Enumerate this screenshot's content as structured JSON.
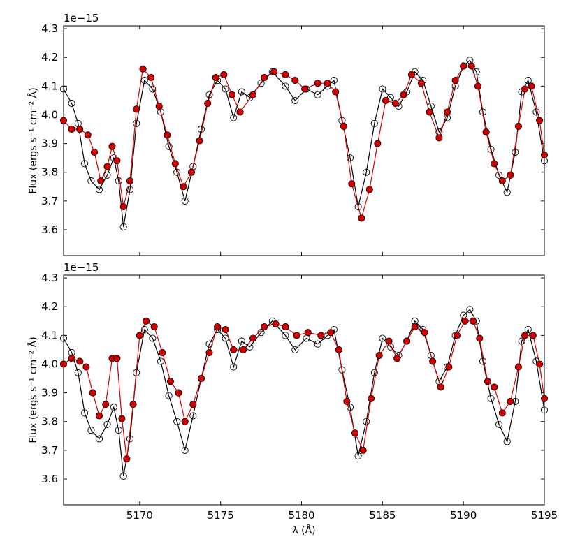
{
  "chart_data": [
    {
      "type": "line",
      "panel": "top",
      "ylabel": "Flux (ergs s⁻¹ cm⁻² Å)",
      "offset_text": "1e−15",
      "xlim": [
        5165.3,
        5195
      ],
      "ylim": [
        3.51,
        4.31
      ],
      "xticks": [
        5170,
        5175,
        5180,
        5185,
        5190,
        5195
      ],
      "yticks": [
        3.6,
        3.7,
        3.8,
        3.9,
        4.0,
        4.1,
        4.2,
        4.3
      ],
      "ytick_labels": [
        "3.6",
        "3.7",
        "3.8",
        "3.9",
        "4.0",
        "4.1",
        "4.2",
        "4.3"
      ],
      "series": [
        {
          "color": "#000000",
          "marker": "open-circle",
          "points": [
            [
              5165.3,
              4.09
            ],
            [
              5165.8,
              4.04
            ],
            [
              5166.2,
              3.97
            ],
            [
              5166.6,
              3.83
            ],
            [
              5167.0,
              3.77
            ],
            [
              5167.5,
              3.74
            ],
            [
              5168.0,
              3.79
            ],
            [
              5168.4,
              3.85
            ],
            [
              5168.7,
              3.77
            ],
            [
              5169.0,
              3.61
            ],
            [
              5169.4,
              3.74
            ],
            [
              5169.8,
              3.97
            ],
            [
              5170.3,
              4.12
            ],
            [
              5170.8,
              4.09
            ],
            [
              5171.3,
              4.01
            ],
            [
              5171.8,
              3.89
            ],
            [
              5172.3,
              3.8
            ],
            [
              5172.8,
              3.7
            ],
            [
              5173.3,
              3.82
            ],
            [
              5173.8,
              3.95
            ],
            [
              5174.3,
              4.07
            ],
            [
              5174.8,
              4.12
            ],
            [
              5175.3,
              4.09
            ],
            [
              5175.8,
              3.99
            ],
            [
              5176.3,
              4.08
            ],
            [
              5176.8,
              4.06
            ],
            [
              5177.5,
              4.11
            ],
            [
              5178.2,
              4.15
            ],
            [
              5179.0,
              4.1
            ],
            [
              5179.6,
              4.05
            ],
            [
              5180.3,
              4.09
            ],
            [
              5181.0,
              4.07
            ],
            [
              5181.6,
              4.1
            ],
            [
              5182.0,
              4.12
            ],
            [
              5182.5,
              3.98
            ],
            [
              5183.0,
              3.85
            ],
            [
              5183.5,
              3.68
            ],
            [
              5184.0,
              3.8
            ],
            [
              5184.5,
              3.97
            ],
            [
              5185.0,
              4.09
            ],
            [
              5185.5,
              4.06
            ],
            [
              5186.0,
              4.03
            ],
            [
              5186.5,
              4.08
            ],
            [
              5187.0,
              4.15
            ],
            [
              5187.5,
              4.12
            ],
            [
              5188.0,
              4.03
            ],
            [
              5188.5,
              3.94
            ],
            [
              5189.0,
              3.99
            ],
            [
              5189.5,
              4.1
            ],
            [
              5190.0,
              4.17
            ],
            [
              5190.4,
              4.19
            ],
            [
              5190.8,
              4.15
            ],
            [
              5191.2,
              4.01
            ],
            [
              5191.7,
              3.88
            ],
            [
              5192.2,
              3.79
            ],
            [
              5192.7,
              3.73
            ],
            [
              5193.2,
              3.87
            ],
            [
              5193.6,
              4.08
            ],
            [
              5194.0,
              4.12
            ],
            [
              5194.5,
              4.01
            ],
            [
              5195.0,
              3.84
            ]
          ]
        },
        {
          "color": "#d40000",
          "marker": "filled-circle",
          "points": [
            [
              5165.3,
              3.98
            ],
            [
              5165.8,
              3.95
            ],
            [
              5166.3,
              3.95
            ],
            [
              5166.8,
              3.93
            ],
            [
              5167.2,
              3.87
            ],
            [
              5167.6,
              3.77
            ],
            [
              5168.0,
              3.82
            ],
            [
              5168.3,
              3.89
            ],
            [
              5168.6,
              3.84
            ],
            [
              5169.0,
              3.68
            ],
            [
              5169.4,
              3.77
            ],
            [
              5169.8,
              4.02
            ],
            [
              5170.2,
              4.16
            ],
            [
              5170.7,
              4.13
            ],
            [
              5171.2,
              4.03
            ],
            [
              5171.7,
              3.93
            ],
            [
              5172.2,
              3.83
            ],
            [
              5172.7,
              3.75
            ],
            [
              5173.2,
              3.8
            ],
            [
              5173.7,
              3.91
            ],
            [
              5174.2,
              4.04
            ],
            [
              5174.7,
              4.13
            ],
            [
              5175.2,
              4.14
            ],
            [
              5175.7,
              4.07
            ],
            [
              5176.2,
              4.01
            ],
            [
              5177.0,
              4.07
            ],
            [
              5177.7,
              4.13
            ],
            [
              5178.3,
              4.15
            ],
            [
              5179.0,
              4.14
            ],
            [
              5179.6,
              4.12
            ],
            [
              5180.2,
              4.09
            ],
            [
              5181.0,
              4.11
            ],
            [
              5181.6,
              4.11
            ],
            [
              5182.1,
              4.08
            ],
            [
              5182.6,
              3.96
            ],
            [
              5183.1,
              3.76
            ],
            [
              5183.7,
              3.64
            ],
            [
              5184.2,
              3.74
            ],
            [
              5184.7,
              3.9
            ],
            [
              5185.2,
              4.05
            ],
            [
              5185.8,
              4.04
            ],
            [
              5186.3,
              4.07
            ],
            [
              5186.8,
              4.14
            ],
            [
              5187.4,
              4.11
            ],
            [
              5187.9,
              4.01
            ],
            [
              5188.5,
              3.92
            ],
            [
              5189.0,
              4.01
            ],
            [
              5189.5,
              4.12
            ],
            [
              5190.0,
              4.17
            ],
            [
              5190.5,
              4.17
            ],
            [
              5190.9,
              4.1
            ],
            [
              5191.4,
              3.94
            ],
            [
              5191.9,
              3.83
            ],
            [
              5192.4,
              3.77
            ],
            [
              5192.9,
              3.79
            ],
            [
              5193.4,
              3.96
            ],
            [
              5193.8,
              4.09
            ],
            [
              5194.2,
              4.1
            ],
            [
              5194.7,
              3.98
            ],
            [
              5195.0,
              3.86
            ]
          ]
        }
      ]
    },
    {
      "type": "line",
      "panel": "bottom",
      "ylabel": "Flux (ergs s⁻¹ cm⁻² Å)",
      "xlabel": "λ (Å)",
      "offset_text": "1e−15",
      "xlim": [
        5165.3,
        5195
      ],
      "ylim": [
        3.51,
        4.31
      ],
      "xticks": [
        5170,
        5175,
        5180,
        5185,
        5190,
        5195
      ],
      "xtick_labels": [
        "5170",
        "5175",
        "5180",
        "5185",
        "5190",
        "5195"
      ],
      "yticks": [
        3.6,
        3.7,
        3.8,
        3.9,
        4.0,
        4.1,
        4.2,
        4.3
      ],
      "ytick_labels": [
        "3.6",
        "3.7",
        "3.8",
        "3.9",
        "4.0",
        "4.1",
        "4.2",
        "4.3"
      ],
      "series": [
        {
          "color": "#000000",
          "marker": "open-circle",
          "points": [
            [
              5165.3,
              4.09
            ],
            [
              5165.8,
              4.04
            ],
            [
              5166.2,
              3.97
            ],
            [
              5166.6,
              3.83
            ],
            [
              5167.0,
              3.77
            ],
            [
              5167.5,
              3.74
            ],
            [
              5168.0,
              3.79
            ],
            [
              5168.4,
              3.85
            ],
            [
              5168.7,
              3.77
            ],
            [
              5169.0,
              3.61
            ],
            [
              5169.4,
              3.74
            ],
            [
              5169.8,
              3.97
            ],
            [
              5170.3,
              4.12
            ],
            [
              5170.8,
              4.09
            ],
            [
              5171.3,
              4.01
            ],
            [
              5171.8,
              3.89
            ],
            [
              5172.3,
              3.8
            ],
            [
              5172.8,
              3.7
            ],
            [
              5173.3,
              3.82
            ],
            [
              5173.8,
              3.95
            ],
            [
              5174.3,
              4.07
            ],
            [
              5174.8,
              4.12
            ],
            [
              5175.3,
              4.09
            ],
            [
              5175.8,
              3.99
            ],
            [
              5176.3,
              4.08
            ],
            [
              5176.8,
              4.06
            ],
            [
              5177.5,
              4.11
            ],
            [
              5178.2,
              4.15
            ],
            [
              5179.0,
              4.1
            ],
            [
              5179.6,
              4.05
            ],
            [
              5180.3,
              4.09
            ],
            [
              5181.0,
              4.07
            ],
            [
              5181.6,
              4.1
            ],
            [
              5182.0,
              4.12
            ],
            [
              5182.5,
              3.98
            ],
            [
              5183.0,
              3.85
            ],
            [
              5183.5,
              3.68
            ],
            [
              5184.0,
              3.8
            ],
            [
              5184.5,
              3.97
            ],
            [
              5185.0,
              4.09
            ],
            [
              5185.5,
              4.06
            ],
            [
              5186.0,
              4.03
            ],
            [
              5186.5,
              4.08
            ],
            [
              5187.0,
              4.15
            ],
            [
              5187.5,
              4.12
            ],
            [
              5188.0,
              4.03
            ],
            [
              5188.5,
              3.94
            ],
            [
              5189.0,
              3.99
            ],
            [
              5189.5,
              4.1
            ],
            [
              5190.0,
              4.17
            ],
            [
              5190.4,
              4.19
            ],
            [
              5190.8,
              4.15
            ],
            [
              5191.2,
              4.01
            ],
            [
              5191.7,
              3.88
            ],
            [
              5192.2,
              3.79
            ],
            [
              5192.7,
              3.73
            ],
            [
              5193.2,
              3.87
            ],
            [
              5193.6,
              4.08
            ],
            [
              5194.0,
              4.12
            ],
            [
              5194.5,
              4.01
            ],
            [
              5195.0,
              3.84
            ]
          ]
        },
        {
          "color": "#d40000",
          "marker": "filled-circle",
          "points": [
            [
              5165.3,
              4.0
            ],
            [
              5165.8,
              4.02
            ],
            [
              5166.3,
              4.01
            ],
            [
              5166.7,
              3.99
            ],
            [
              5167.1,
              3.9
            ],
            [
              5167.5,
              3.82
            ],
            [
              5167.9,
              3.86
            ],
            [
              5168.3,
              4.02
            ],
            [
              5168.6,
              4.02
            ],
            [
              5168.9,
              3.81
            ],
            [
              5169.2,
              3.67
            ],
            [
              5169.6,
              3.86
            ],
            [
              5170.0,
              4.1
            ],
            [
              5170.4,
              4.15
            ],
            [
              5170.9,
              4.13
            ],
            [
              5171.4,
              4.04
            ],
            [
              5171.9,
              3.94
            ],
            [
              5172.4,
              3.9
            ],
            [
              5172.8,
              3.8
            ],
            [
              5173.3,
              3.86
            ],
            [
              5173.8,
              3.95
            ],
            [
              5174.3,
              4.04
            ],
            [
              5174.8,
              4.13
            ],
            [
              5175.3,
              4.12
            ],
            [
              5175.8,
              4.05
            ],
            [
              5176.4,
              4.05
            ],
            [
              5177.0,
              4.09
            ],
            [
              5177.7,
              4.13
            ],
            [
              5178.4,
              4.14
            ],
            [
              5179.0,
              4.13
            ],
            [
              5179.7,
              4.1
            ],
            [
              5180.4,
              4.11
            ],
            [
              5181.2,
              4.1
            ],
            [
              5181.8,
              4.11
            ],
            [
              5182.3,
              4.05
            ],
            [
              5182.8,
              3.87
            ],
            [
              5183.3,
              3.76
            ],
            [
              5183.8,
              3.7
            ],
            [
              5184.3,
              3.88
            ],
            [
              5184.8,
              4.03
            ],
            [
              5185.4,
              4.08
            ],
            [
              5185.9,
              4.02
            ],
            [
              5186.5,
              4.08
            ],
            [
              5187.0,
              4.13
            ],
            [
              5187.6,
              4.11
            ],
            [
              5188.1,
              4.01
            ],
            [
              5188.6,
              3.92
            ],
            [
              5189.1,
              3.99
            ],
            [
              5189.6,
              4.1
            ],
            [
              5190.1,
              4.15
            ],
            [
              5190.6,
              4.15
            ],
            [
              5191.0,
              4.09
            ],
            [
              5191.5,
              3.94
            ],
            [
              5191.9,
              3.92
            ],
            [
              5192.4,
              3.83
            ],
            [
              5192.9,
              3.87
            ],
            [
              5193.4,
              3.99
            ],
            [
              5193.8,
              4.1
            ],
            [
              5194.3,
              4.1
            ],
            [
              5194.7,
              4.0
            ],
            [
              5195.0,
              3.88
            ]
          ]
        }
      ]
    }
  ]
}
